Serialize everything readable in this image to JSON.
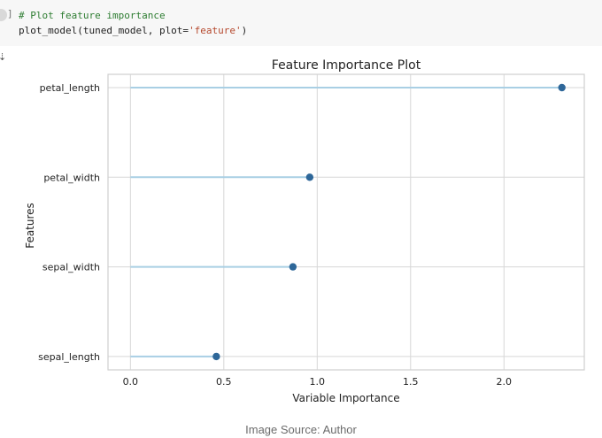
{
  "code_cell": {
    "bracket": "]",
    "comment": "# Plot feature importance",
    "call_prefix": "plot_model(tuned_model, plot=",
    "call_string": "'feature'",
    "call_suffix": ")"
  },
  "output_icon": "output-arrow-icon",
  "output_glyph": "⇣",
  "chart_data": {
    "type": "lollipop",
    "title": "Feature Importance Plot",
    "xlabel": "Variable Importance",
    "ylabel": "Features",
    "xlim": [
      -0.12,
      2.43
    ],
    "xticks": [
      0.0,
      0.5,
      1.0,
      1.5,
      2.0
    ],
    "xtick_labels": [
      "0.0",
      "0.5",
      "1.0",
      "1.5",
      "2.0"
    ],
    "grid": true,
    "categories": [
      "petal_length",
      "petal_width",
      "sepal_width",
      "sepal_length"
    ],
    "values": [
      2.31,
      0.96,
      0.87,
      0.46
    ],
    "line_color": "#a9cfe4",
    "marker_color": "#2e6799",
    "grid_color": "#d7d7d7",
    "axes_edge_color": "#cfcfcf"
  },
  "caption": "Image Source: Author"
}
